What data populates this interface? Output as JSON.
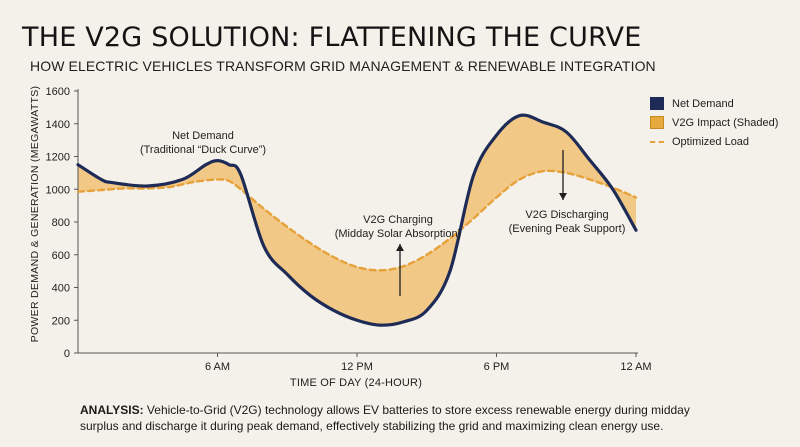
{
  "header": {
    "title": "THE V2G SOLUTION: FLATTENING THE CURVE",
    "subtitle": "HOW ELECTRIC VEHICLES TRANSFORM GRID MANAGEMENT & RENEWABLE INTEGRATION"
  },
  "colors": {
    "net_demand": "#1d2b56",
    "v2g_fill": "#f0c173",
    "optimized": "#e6a23a",
    "background": "#f4f1ea"
  },
  "chart_data": {
    "type": "line",
    "ylabel": "POWER DEMAND & GENERATION (MEGAWATTS)",
    "xlabel": "TIME OF DAY (24-HOUR)",
    "ylim": [
      0,
      1600
    ],
    "xlim": [
      0,
      24
    ],
    "yticks": [
      0,
      200,
      400,
      600,
      800,
      1000,
      1200,
      1400,
      1600
    ],
    "xticks": [
      {
        "value": 6,
        "label": "6 AM"
      },
      {
        "value": 12,
        "label": "12 PM"
      },
      {
        "value": 18,
        "label": "6 PM"
      },
      {
        "value": 24,
        "label": "12 AM"
      }
    ],
    "grid": false,
    "legend_position": "top-right",
    "series": [
      {
        "name": "Net Demand",
        "x": [
          0,
          1,
          1.5,
          3,
          4.5,
          5.5,
          6,
          6.5,
          7,
          8,
          9,
          10,
          11,
          12,
          13,
          14,
          15,
          16,
          17,
          18,
          19,
          20,
          21,
          22,
          23,
          24
        ],
        "values": [
          1150,
          1060,
          1040,
          1020,
          1060,
          1150,
          1175,
          1150,
          1090,
          650,
          480,
          350,
          260,
          200,
          170,
          190,
          260,
          500,
          1080,
          1330,
          1450,
          1410,
          1350,
          1180,
          1000,
          750
        ]
      },
      {
        "name": "Optimized Load",
        "x": [
          0,
          1,
          2,
          3,
          4,
          5,
          6,
          6.5,
          7,
          8,
          9,
          10,
          11,
          12,
          13,
          14,
          15,
          16,
          17,
          18,
          19,
          20,
          21,
          22,
          23,
          24
        ],
        "values": [
          985,
          995,
          1005,
          1005,
          1015,
          1045,
          1060,
          1050,
          1000,
          880,
          770,
          670,
          585,
          525,
          505,
          530,
          600,
          700,
          820,
          950,
          1060,
          1110,
          1100,
          1060,
          1010,
          950
        ]
      }
    ],
    "shaded": {
      "name": "V2G Impact (Shaded)"
    },
    "annotations": [
      {
        "text_line1": "Net Demand",
        "text_line2": "(Traditional “Duck Curve”)"
      },
      {
        "text_line1": "V2G Charging",
        "text_line2": "(Midday Solar Absorption)",
        "arrow": "up"
      },
      {
        "text_line1": "V2G Discharging",
        "text_line2": "(Evening Peak Support)",
        "arrow": "down"
      }
    ]
  },
  "legend": {
    "items": [
      {
        "label": "Net Demand",
        "kind": "line"
      },
      {
        "label": "V2G Impact (Shaded)",
        "kind": "fill"
      },
      {
        "label": "Optimized Load",
        "kind": "dashed"
      }
    ]
  },
  "analysis": {
    "label": "ANALYSIS:",
    "text": "Vehicle-to-Grid (V2G) technology allows EV batteries to store excess renewable energy during midday surplus and discharge it during peak demand, effectively stabilizing the grid and maximizing clean energy use."
  }
}
